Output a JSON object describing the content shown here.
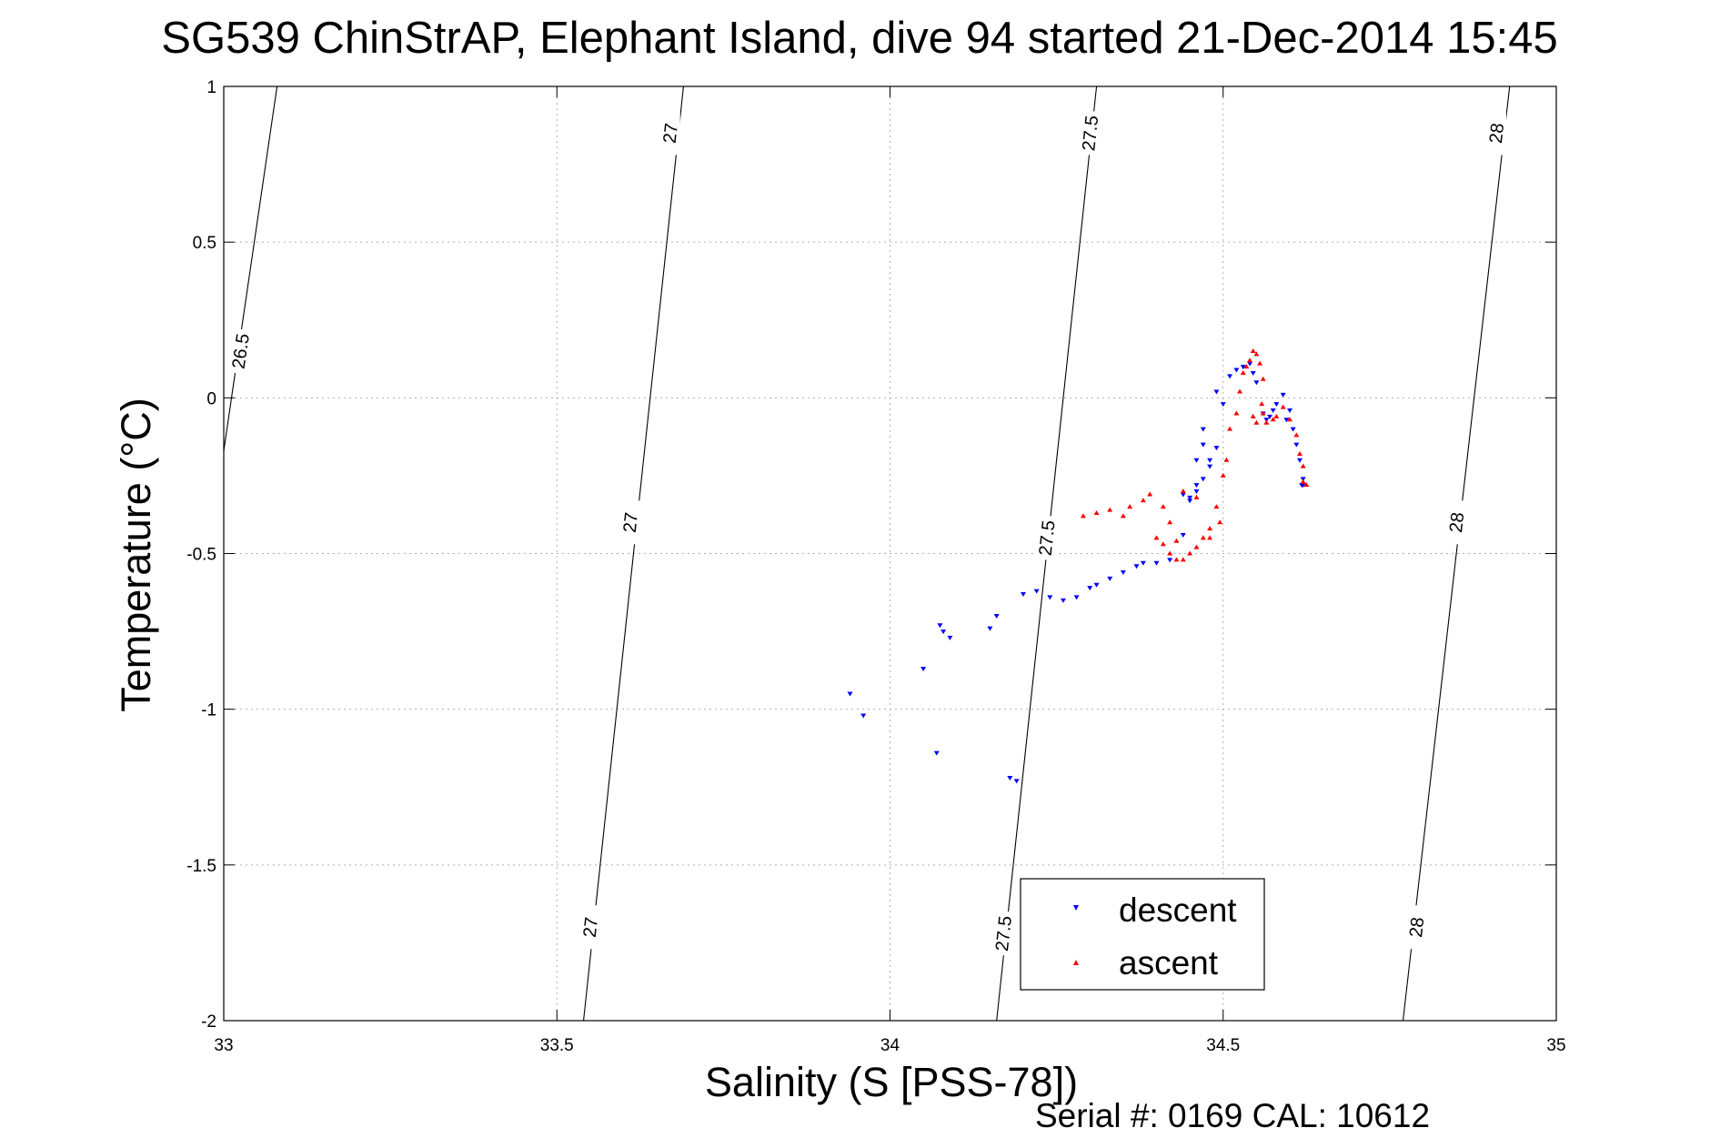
{
  "chart_data": {
    "type": "scatter",
    "title": "SG539 ChinStrAP, Elephant Island, dive 94 started 21-Dec-2014 15:45",
    "xlabel": "Salinity (S [PSS-78])",
    "ylabel": "Temperature (°C)",
    "xlim": [
      33,
      35
    ],
    "ylim": [
      -2,
      1
    ],
    "xticks": [
      "33",
      "33.5",
      "34",
      "34.5",
      "35"
    ],
    "yticks": [
      "1",
      "0.5",
      "0",
      "-0.5",
      "-1",
      "-1.5",
      "-2"
    ],
    "grid": true,
    "legend_position": "bottom-center",
    "footer": "Serial #: 0169 CAL: 10612",
    "contours": [
      {
        "label": "26.5",
        "points": [
          [
            33.0,
            -0.17
          ],
          [
            33.08,
            1.0
          ]
        ],
        "label_positions": [
          [
            33.025,
            0.15
          ]
        ]
      },
      {
        "label": "27",
        "points": [
          [
            33.54,
            -2.0
          ],
          [
            33.69,
            1.0
          ]
        ],
        "label_positions": [
          [
            33.55,
            -1.7
          ],
          [
            33.61,
            -0.4
          ],
          [
            33.67,
            0.85
          ]
        ]
      },
      {
        "label": "27.5",
        "points": [
          [
            34.16,
            -2.0
          ],
          [
            34.31,
            1.0
          ]
        ],
        "label_positions": [
          [
            34.17,
            -1.72
          ],
          [
            34.235,
            -0.45
          ],
          [
            34.3,
            0.85
          ]
        ]
      },
      {
        "label": "28",
        "points": [
          [
            34.77,
            -2.0
          ],
          [
            34.93,
            1.0
          ]
        ],
        "label_positions": [
          [
            34.79,
            -1.7
          ],
          [
            34.85,
            -0.4
          ],
          [
            34.91,
            0.85
          ]
        ]
      }
    ],
    "series": [
      {
        "name": "descent",
        "color": "#0000ff",
        "marker": "triangle-down",
        "x": [
          33.94,
          33.96,
          34.05,
          34.07,
          34.08,
          34.075,
          34.09,
          34.15,
          34.16,
          34.18,
          34.19,
          34.2,
          34.22,
          34.24,
          34.26,
          34.28,
          34.3,
          34.31,
          34.33,
          34.35,
          34.37,
          34.38,
          34.4,
          34.42,
          34.44,
          34.45,
          34.44,
          34.46,
          34.47,
          34.46,
          34.48,
          34.47,
          34.45,
          34.46,
          34.48,
          34.49,
          34.47,
          34.5,
          34.49,
          34.51,
          34.52,
          34.53,
          34.54,
          34.55,
          34.545,
          34.56,
          34.565,
          34.57,
          34.575,
          34.58,
          34.59,
          34.6,
          34.595,
          34.605,
          34.61,
          34.615,
          34.62,
          34.618,
          34.62
        ],
        "y": [
          -0.95,
          -1.02,
          -0.87,
          -1.14,
          -0.75,
          -0.73,
          -0.77,
          -0.74,
          -0.7,
          -1.22,
          -1.23,
          -0.63,
          -0.62,
          -0.64,
          -0.65,
          -0.64,
          -0.61,
          -0.6,
          -0.58,
          -0.56,
          -0.54,
          -0.53,
          -0.53,
          -0.52,
          -0.44,
          -0.32,
          -0.31,
          -0.3,
          -0.26,
          -0.2,
          -0.22,
          -0.15,
          -0.33,
          -0.28,
          -0.2,
          -0.16,
          -0.1,
          -0.02,
          0.02,
          0.07,
          0.09,
          0.1,
          0.11,
          0.05,
          0.08,
          -0.05,
          -0.07,
          -0.06,
          -0.04,
          -0.02,
          0.01,
          -0.04,
          -0.07,
          -0.1,
          -0.15,
          -0.2,
          -0.26,
          -0.28,
          -0.28
        ]
      },
      {
        "name": "ascent",
        "color": "#ff0000",
        "marker": "triangle-up",
        "x": [
          34.29,
          34.31,
          34.33,
          34.35,
          34.36,
          34.38,
          34.39,
          34.41,
          34.42,
          34.43,
          34.4,
          34.41,
          34.42,
          34.43,
          34.44,
          34.45,
          34.46,
          34.47,
          34.48,
          34.49,
          34.5,
          34.505,
          34.51,
          34.52,
          34.525,
          34.53,
          34.535,
          34.54,
          34.545,
          34.55,
          34.555,
          34.56,
          34.558,
          34.55,
          34.545,
          34.56,
          34.565,
          34.575,
          34.58,
          34.59,
          34.6,
          34.61,
          34.615,
          34.62,
          34.62,
          34.625,
          34.495,
          34.48,
          34.46,
          34.44
        ],
        "y": [
          -0.38,
          -0.37,
          -0.36,
          -0.38,
          -0.35,
          -0.33,
          -0.31,
          -0.35,
          -0.4,
          -0.46,
          -0.45,
          -0.47,
          -0.5,
          -0.52,
          -0.52,
          -0.5,
          -0.48,
          -0.45,
          -0.42,
          -0.35,
          -0.25,
          -0.2,
          -0.1,
          -0.05,
          0.02,
          0.08,
          0.1,
          0.12,
          0.15,
          0.14,
          0.11,
          0.06,
          -0.02,
          -0.08,
          -0.06,
          -0.05,
          -0.08,
          -0.07,
          -0.06,
          -0.03,
          -0.07,
          -0.12,
          -0.18,
          -0.22,
          -0.27,
          -0.28,
          -0.4,
          -0.45,
          -0.32,
          -0.3
        ]
      }
    ]
  }
}
